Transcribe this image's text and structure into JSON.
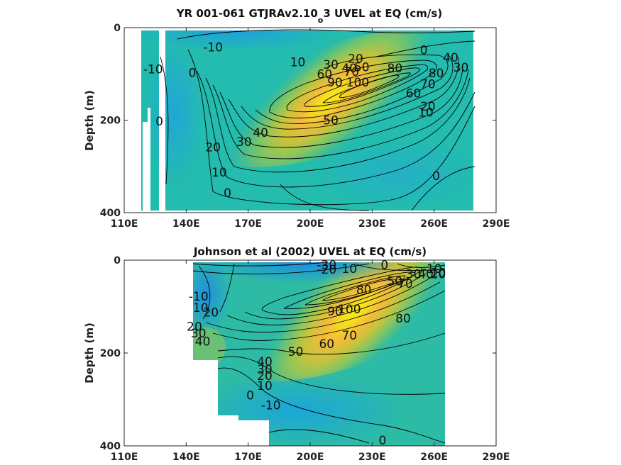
{
  "chart_data": [
    {
      "type": "heatmap",
      "title": "YR 001-061 GTJRAv2.10",
      "title_subscript": "o",
      "title_rest": "3 UVEL at EQ (cm/s)",
      "ylabel": "Depth (m)",
      "xlabel": "",
      "x_ticks": [
        "110E",
        "140E",
        "170E",
        "200E",
        "230E",
        "260E",
        "290E"
      ],
      "y_ticks": [
        "0",
        "200",
        "400"
      ],
      "xlim": [
        110,
        290
      ],
      "ylim": [
        400,
        0
      ],
      "core": {
        "lon": 228,
        "depth": 130,
        "max": 110
      },
      "contour_levels": [
        -10,
        0,
        10,
        20,
        30,
        40,
        50,
        60,
        70,
        80,
        90,
        100
      ],
      "contour_labels": [
        {
          "text": "-10",
          "lon": 153,
          "depth": 42
        },
        {
          "text": "-10",
          "lon": 124,
          "depth": 90
        },
        {
          "text": "0",
          "lon": 143,
          "depth": 97
        },
        {
          "text": "0",
          "lon": 127,
          "depth": 202
        },
        {
          "text": "0",
          "lon": 255,
          "depth": 48
        },
        {
          "text": "0",
          "lon": 160,
          "depth": 357
        },
        {
          "text": "0",
          "lon": 261,
          "depth": 320
        },
        {
          "text": "10",
          "lon": 194,
          "depth": 74
        },
        {
          "text": "10",
          "lon": 156,
          "depth": 313
        },
        {
          "text": "10",
          "lon": 256,
          "depth": 183
        },
        {
          "text": "20",
          "lon": 222,
          "depth": 67
        },
        {
          "text": "20",
          "lon": 257,
          "depth": 170
        },
        {
          "text": "20",
          "lon": 153,
          "depth": 258
        },
        {
          "text": "30",
          "lon": 210,
          "depth": 80
        },
        {
          "text": "30",
          "lon": 168,
          "depth": 247
        },
        {
          "text": "30",
          "lon": 273,
          "depth": 86
        },
        {
          "text": "40",
          "lon": 176,
          "depth": 227
        },
        {
          "text": "40",
          "lon": 219,
          "depth": 87
        },
        {
          "text": "40",
          "lon": 268,
          "depth": 64
        },
        {
          "text": "50",
          "lon": 210,
          "depth": 200
        },
        {
          "text": "50",
          "lon": 225,
          "depth": 85
        },
        {
          "text": "60",
          "lon": 207,
          "depth": 100
        },
        {
          "text": "60",
          "lon": 250,
          "depth": 142
        },
        {
          "text": "70",
          "lon": 220,
          "depth": 95
        },
        {
          "text": "70",
          "lon": 257,
          "depth": 122
        },
        {
          "text": "80",
          "lon": 241,
          "depth": 87
        },
        {
          "text": "80",
          "lon": 261,
          "depth": 98
        },
        {
          "text": "90",
          "lon": 212,
          "depth": 118
        },
        {
          "text": "100",
          "lon": 223,
          "depth": 118
        }
      ]
    },
    {
      "type": "heatmap",
      "title": "Johnson et al (2002) UVEL at EQ (cm/s)",
      "ylabel": "Depth (m)",
      "xlabel": "",
      "x_ticks": [
        "110E",
        "140E",
        "170E",
        "200E",
        "230E",
        "260E",
        "290E"
      ],
      "y_ticks": [
        "0",
        "200",
        "400"
      ],
      "xlim": [
        110,
        290
      ],
      "ylim": [
        400,
        0
      ],
      "core": {
        "lon": 228,
        "depth": 120,
        "max": 105
      },
      "contour_levels": [
        -30,
        -20,
        -10,
        0,
        10,
        20,
        30,
        40,
        50,
        60,
        70,
        80,
        90,
        100
      ],
      "contour_labels": [
        {
          "text": "-30",
          "lon": 208,
          "depth": 10
        },
        {
          "text": "-20",
          "lon": 208,
          "depth": 20
        },
        {
          "text": "10",
          "lon": 219,
          "depth": 18
        },
        {
          "text": "0",
          "lon": 236,
          "depth": 10
        },
        {
          "text": "-10",
          "lon": 259,
          "depth": 18
        },
        {
          "text": "10",
          "lon": 262,
          "depth": 27
        },
        {
          "text": "20",
          "lon": 262,
          "depth": 30
        },
        {
          "text": "30",
          "lon": 250,
          "depth": 30
        },
        {
          "text": "40",
          "lon": 256,
          "depth": 30
        },
        {
          "text": "50",
          "lon": 241,
          "depth": 45
        },
        {
          "text": "70",
          "lon": 246,
          "depth": 50
        },
        {
          "text": "80",
          "lon": 226,
          "depth": 63
        },
        {
          "text": "-10",
          "lon": 146,
          "depth": 78
        },
        {
          "text": "10",
          "lon": 147,
          "depth": 102
        },
        {
          "text": "20",
          "lon": 152,
          "depth": 112
        },
        {
          "text": "20",
          "lon": 144,
          "depth": 143
        },
        {
          "text": "30",
          "lon": 146,
          "depth": 157
        },
        {
          "text": "40",
          "lon": 148,
          "depth": 175
        },
        {
          "text": "90",
          "lon": 212,
          "depth": 110
        },
        {
          "text": "100",
          "lon": 219,
          "depth": 105
        },
        {
          "text": "80",
          "lon": 245,
          "depth": 125
        },
        {
          "text": "70",
          "lon": 219,
          "depth": 162
        },
        {
          "text": "60",
          "lon": 208,
          "depth": 180
        },
        {
          "text": "50",
          "lon": 193,
          "depth": 197
        },
        {
          "text": "40",
          "lon": 178,
          "depth": 218
        },
        {
          "text": "30",
          "lon": 178,
          "depth": 235
        },
        {
          "text": "20",
          "lon": 178,
          "depth": 249
        },
        {
          "text": "10",
          "lon": 178,
          "depth": 270
        },
        {
          "text": "0",
          "lon": 171,
          "depth": 291
        },
        {
          "text": "-10",
          "lon": 181,
          "depth": 312
        },
        {
          "text": "0",
          "lon": 235,
          "depth": 388
        }
      ]
    }
  ]
}
